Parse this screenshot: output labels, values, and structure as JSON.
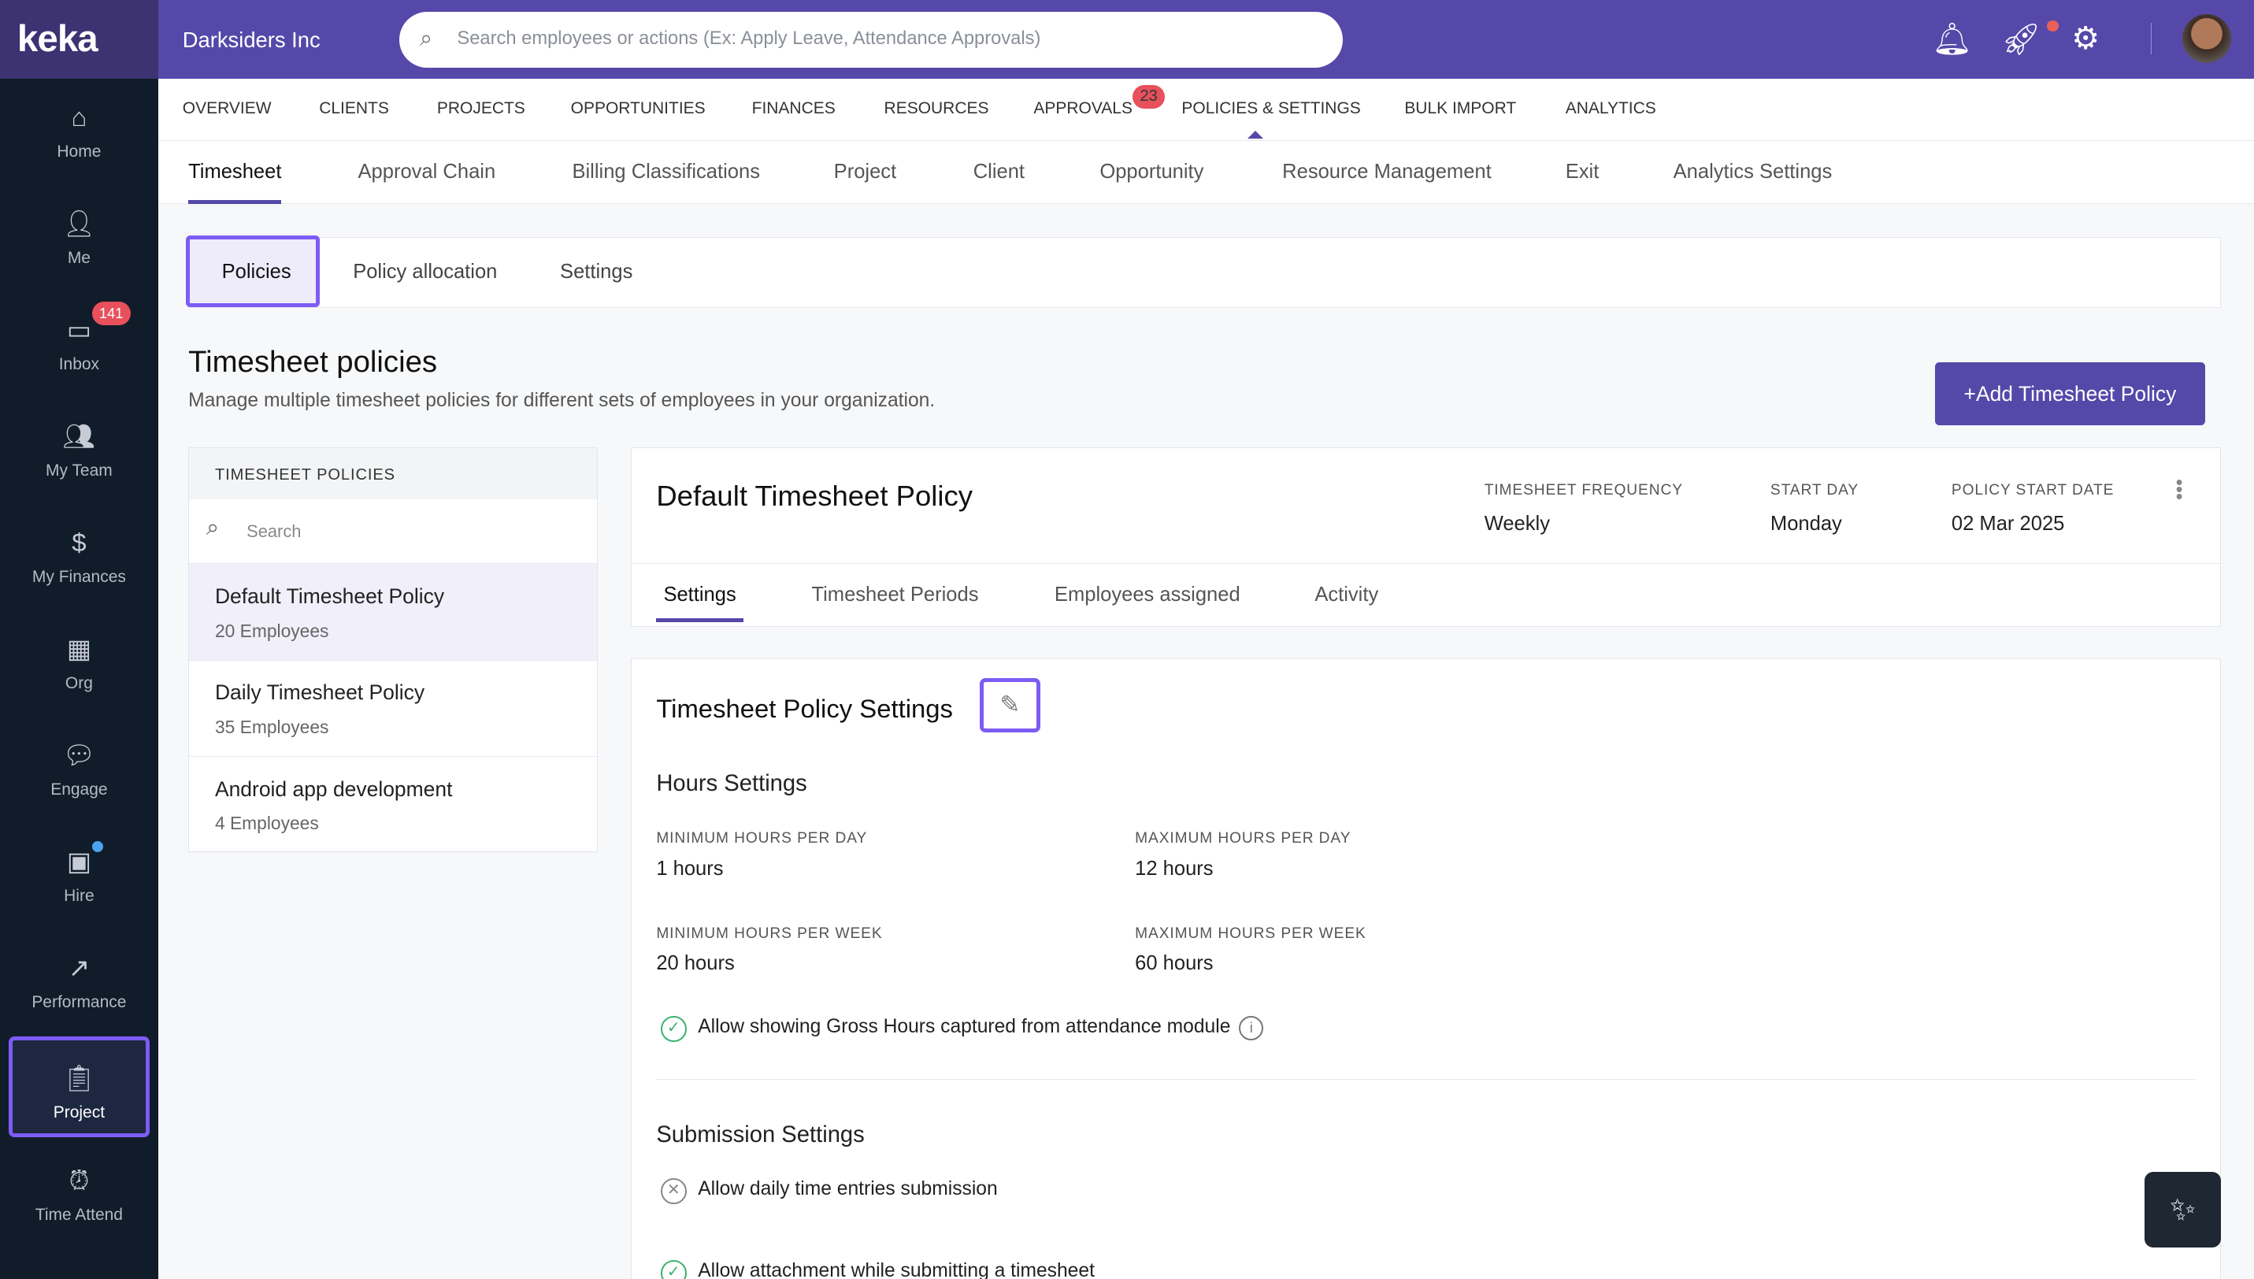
{
  "brand": {
    "logo": "keka",
    "org": "Darksiders Inc",
    "accent": "#5548a9"
  },
  "search": {
    "placeholder": "Search employees or actions (Ex: Apply Leave, Attendance Approvals)"
  },
  "topicons": [
    "bell-icon",
    "rocket-icon",
    "gear-icon"
  ],
  "sidebar": {
    "items": [
      {
        "label": "Home"
      },
      {
        "label": "Me"
      },
      {
        "label": "Inbox",
        "badge": "141"
      },
      {
        "label": "My Team"
      },
      {
        "label": "My Finances"
      },
      {
        "label": "Org"
      },
      {
        "label": "Engage"
      },
      {
        "label": "Hire"
      },
      {
        "label": "Performance"
      },
      {
        "label": "Project"
      },
      {
        "label": "Time Attend"
      }
    ]
  },
  "nav1": {
    "items": [
      "OVERVIEW",
      "CLIENTS",
      "PROJECTS",
      "OPPORTUNITIES",
      "FINANCES",
      "RESOURCES",
      "APPROVALS",
      "POLICIES & SETTINGS",
      "BULK IMPORT",
      "ANALYTICS"
    ],
    "approvals_badge": "23"
  },
  "nav2": {
    "items": [
      "Timesheet",
      "Approval Chain",
      "Billing Classifications",
      "Project",
      "Client",
      "Opportunity",
      "Resource Management",
      "Exit",
      "Analytics Settings"
    ]
  },
  "subtabs": [
    "Policies",
    "Policy allocation",
    "Settings"
  ],
  "page": {
    "title": "Timesheet policies",
    "description": "Manage multiple timesheet policies for different sets of employees in your organization.",
    "add_button": "+Add Timesheet Policy"
  },
  "policy_list": {
    "header": "TIMESHEET POLICIES",
    "search_placeholder": "Search",
    "items": [
      {
        "name": "Default Timesheet Policy",
        "count": "20 Employees"
      },
      {
        "name": "Daily Timesheet Policy",
        "count": "35 Employees"
      },
      {
        "name": "Android app development",
        "count": "4 Employees"
      }
    ]
  },
  "policy": {
    "title": "Default Timesheet Policy",
    "meta": [
      {
        "label": "TIMESHEET FREQUENCY",
        "value": "Weekly"
      },
      {
        "label": "START DAY",
        "value": "Monday"
      },
      {
        "label": "POLICY START DATE",
        "value": "02 Mar 2025"
      }
    ],
    "tabs": [
      "Settings",
      "Timesheet Periods",
      "Employees assigned",
      "Activity"
    ]
  },
  "settings": {
    "title": "Timesheet Policy Settings",
    "hours_title": "Hours Settings",
    "fields": [
      {
        "label": "MINIMUM HOURS PER DAY",
        "value": "1 hours"
      },
      {
        "label": "MAXIMUM HOURS PER DAY",
        "value": "12 hours"
      },
      {
        "label": "MINIMUM HOURS PER WEEK",
        "value": "20 hours"
      },
      {
        "label": "MAXIMUM HOURS PER WEEK",
        "value": "60 hours"
      }
    ],
    "gross_hours": "Allow showing Gross Hours captured from attendance module",
    "submission_title": "Submission Settings",
    "daily_entries": "Allow daily time entries submission",
    "attachment": "Allow attachment while submitting a timesheet"
  }
}
